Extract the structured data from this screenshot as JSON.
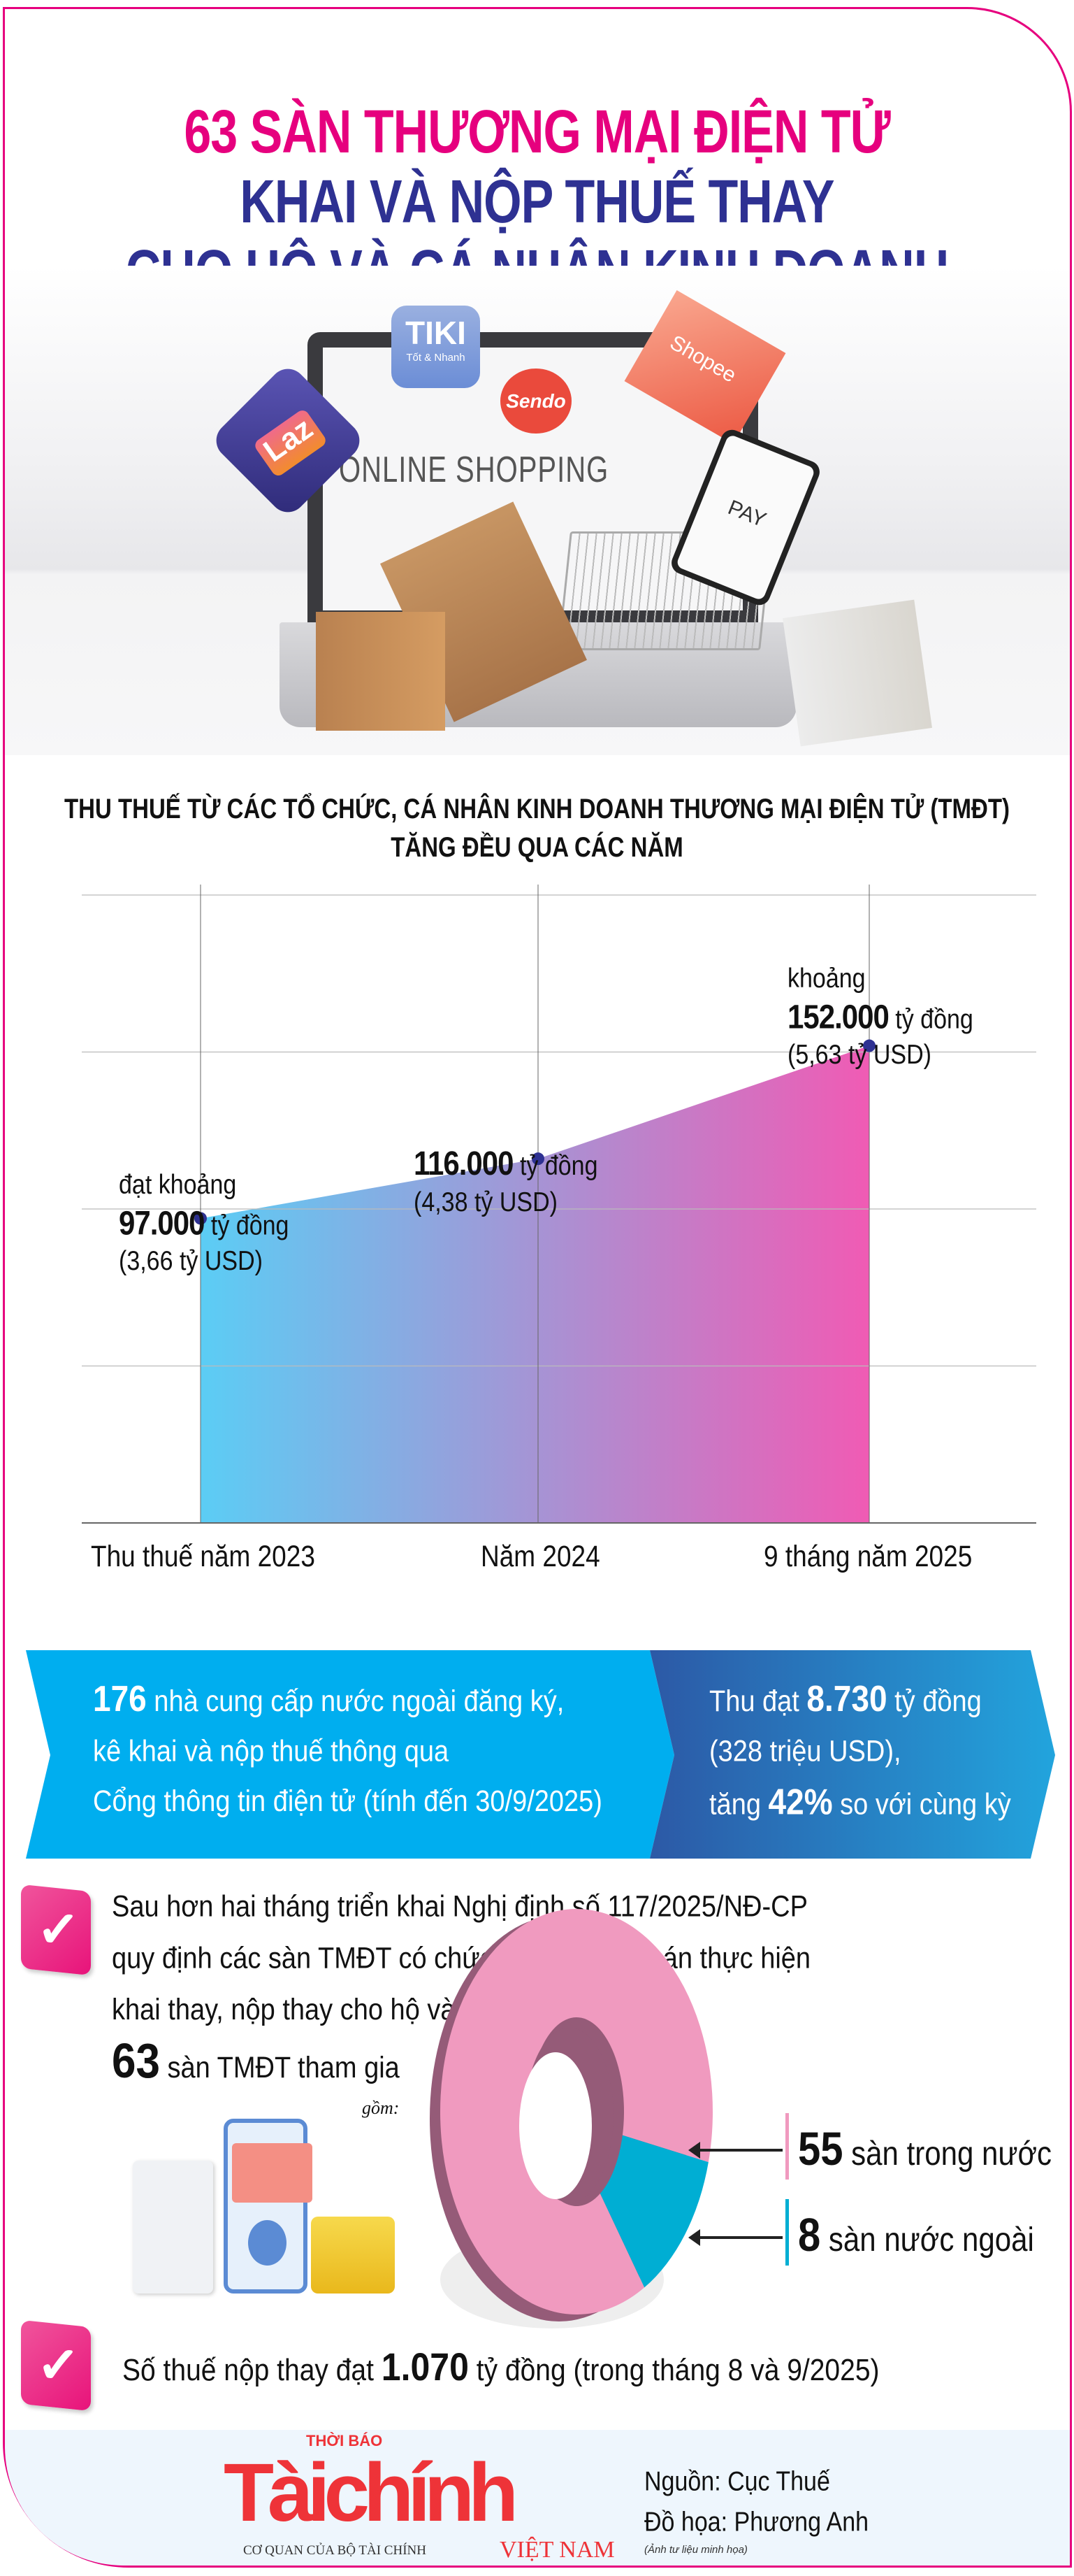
{
  "header": {
    "title_line1": "63 SÀN THƯƠNG MẠI ĐIỆN TỬ",
    "title_line2": "KHAI VÀ NỘP THUẾ THAY",
    "title_line3": "CHO HỘ VÀ CÁ NHÂN KINH DOANH",
    "colors": {
      "pink": "#e6007e",
      "navy": "#2e3192"
    }
  },
  "hero": {
    "tiki": "TIKI",
    "tiki_sub": "Tốt & Nhanh",
    "sendo": "Sendo",
    "shopee": "Shopee",
    "lazada": "Laz",
    "screen_text": "ONLINE SHOPPING",
    "phone_text": "PAY"
  },
  "chart_data": {
    "type": "area",
    "title": "THU THUẾ TỪ CÁC TỔ CHỨC, CÁ NHÂN KINH DOANH THƯƠNG MẠI ĐIỆN TỬ (TMĐT)",
    "subtitle": "TĂNG ĐỀU QUA CÁC NĂM",
    "categories": [
      "Thu thuế năm 2023",
      "Năm 2024",
      "9 tháng năm 2025"
    ],
    "values": [
      97000,
      116000,
      152000
    ],
    "unit": "tỷ đồng",
    "ylim": [
      0,
      200000
    ],
    "grid_step": 50000,
    "grid": true,
    "labels": [
      {
        "prefix": "đạt khoảng",
        "value": "97.000",
        "unit": "tỷ đồng",
        "usd": "(3,66 tỷ USD)"
      },
      {
        "prefix": "",
        "value": "116.000",
        "unit": "tỷ đồng",
        "usd": "(4,38 tỷ USD)"
      },
      {
        "prefix": "khoảng",
        "value": "152.000",
        "unit": "tỷ đồng",
        "usd": "(5,63 tỷ USD)"
      }
    ],
    "gradient": [
      "#5bcdf5",
      "#f05bb4"
    ],
    "point_color": "#2e3192"
  },
  "banner": {
    "left": {
      "num": "176",
      "line1": " nhà cung cấp nước ngoài đăng ký,",
      "line2": "kê khai và nộp thuế thông qua",
      "line3": "Cổng thông tin điện tử (tính đến 30/9/2025)"
    },
    "right": {
      "l1a": "Thu đạt ",
      "num": "8.730",
      "l1b": " tỷ đồng",
      "line2": "(328 triệu USD),",
      "l3a": "tăng ",
      "pct": "42%",
      "l3b": " so với cùng kỳ"
    }
  },
  "section1": {
    "check": "✓",
    "line1": "Sau hơn hai tháng triển khai Nghị định số 117/2025/NĐ-CP",
    "line2": "quy định các sàn TMĐT có chức năng thanh toán thực hiện",
    "line3": "khai thay, nộp thay cho hộ và cá nhân kinh doanh",
    "total": "63",
    "total_label": " sàn TMĐT tham gia",
    "includes": "gồm:",
    "donut": [
      {
        "value": 55,
        "num": "55",
        "label": " sàn trong nước",
        "color": "#f09abf"
      },
      {
        "value": 8,
        "num": "8",
        "label": " sàn nước ngoài",
        "color": "#00aed3"
      }
    ]
  },
  "section2": {
    "check": "✓",
    "pre": "Số thuế nộp thay đạt ",
    "num": "1.070",
    "post": " tỷ đồng (trong tháng 8 và 9/2025)"
  },
  "footer": {
    "logo_top": "THỜI BÁO",
    "logo_main": "Tàichính",
    "logo_sub": "CƠ QUAN CỦA BỘ TÀI CHÍNH",
    "logo_country": "VIỆT NAM",
    "source": "Nguồn: Cục Thuế",
    "design": "Đồ họa: Phương Anh",
    "photo_note": "(Ảnh tư liệu minh họa)"
  }
}
